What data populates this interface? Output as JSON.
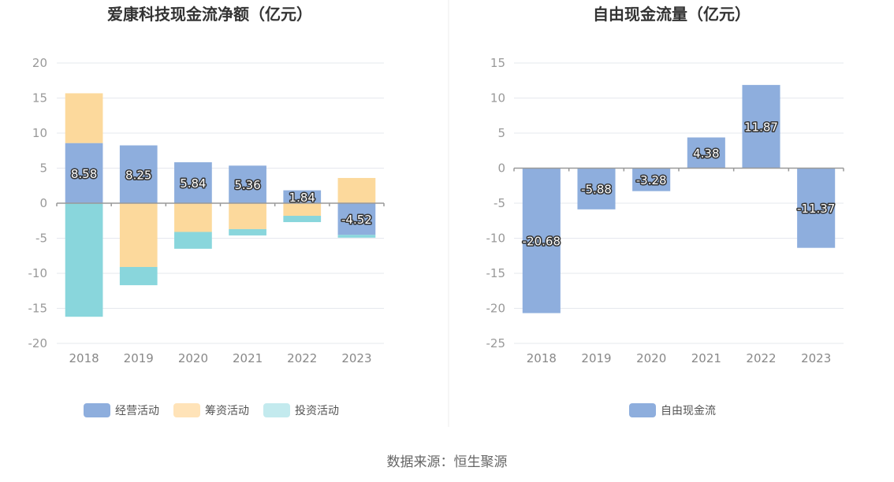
{
  "source_label": "数据来源：恒生聚源",
  "chart_data": [
    {
      "type": "bar",
      "stacked": true,
      "title": "爱康科技现金流净额（亿元）",
      "categories": [
        "2018",
        "2019",
        "2020",
        "2021",
        "2022",
        "2023"
      ],
      "ylim": [
        -20,
        20
      ],
      "yticks": [
        20,
        15,
        10,
        5,
        0,
        -5,
        -10,
        -15,
        -20
      ],
      "grid": true,
      "legend_position": "bottom",
      "series": [
        {
          "name": "经营活动",
          "color": "#8eaedd",
          "values": [
            8.58,
            8.25,
            5.84,
            5.36,
            1.84,
            -4.52
          ],
          "labels": [
            "8.58",
            "8.25",
            "5.84",
            "5.36",
            "1.84",
            "-4.52"
          ]
        },
        {
          "name": "筹资活动",
          "color": "#fcd99c",
          "values": [
            7.1,
            -9.1,
            -4.1,
            -3.7,
            -1.8,
            3.6
          ]
        },
        {
          "name": "投资活动",
          "color": "#89d6dc",
          "values": [
            -16.2,
            -2.6,
            -2.4,
            -0.9,
            -0.9,
            -0.4
          ]
        }
      ],
      "legend_colors": [
        "#8eaedd",
        "#ffe3b8",
        "#c3eaee"
      ]
    },
    {
      "type": "bar",
      "title": "自由现金流量（亿元）",
      "categories": [
        "2018",
        "2019",
        "2020",
        "2021",
        "2022",
        "2023"
      ],
      "ylim": [
        -25,
        15
      ],
      "yticks": [
        15,
        10,
        5,
        0,
        -5,
        -10,
        -15,
        -20,
        -25
      ],
      "grid": true,
      "legend_position": "bottom",
      "series": [
        {
          "name": "自由现金流",
          "color": "#8eaedd",
          "values": [
            -20.68,
            -5.88,
            -3.28,
            4.38,
            11.87,
            -11.37
          ],
          "labels": [
            "-20.68",
            "-5.88",
            "-3.28",
            "4.38",
            "11.87",
            "-11.37"
          ]
        }
      ],
      "legend_colors": [
        "#8eaedd"
      ]
    }
  ]
}
